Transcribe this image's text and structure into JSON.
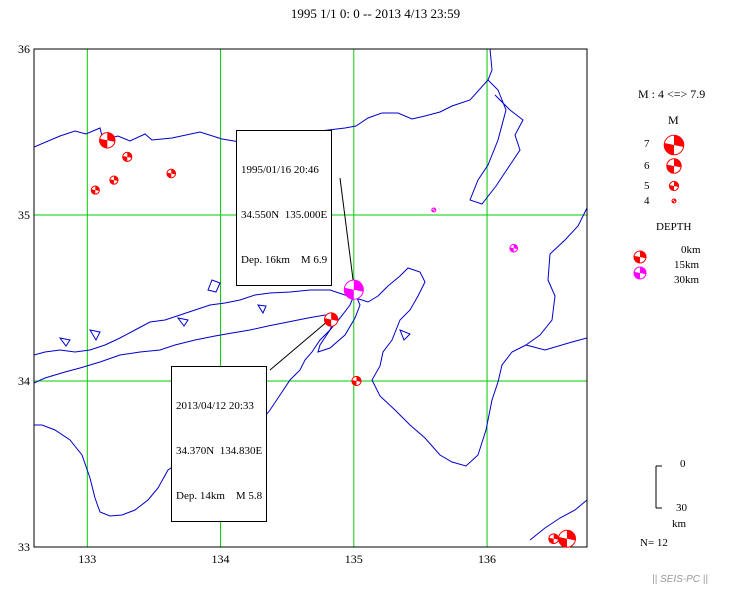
{
  "title": "1995 1/1 0: 0 -- 2013 4/13 23:59",
  "map": {
    "lon_range": [
      132.6,
      136.75
    ],
    "lat_range": [
      33.0,
      36.0
    ],
    "lon_ticks": [
      "133",
      "134",
      "135",
      "136"
    ],
    "lat_ticks": [
      "36",
      "35",
      "34",
      "33"
    ],
    "grid_color": "#00cc00",
    "coast_color": "#0000cc"
  },
  "events": [
    {
      "lon": 133.15,
      "lat": 35.45,
      "mag": 6.2,
      "depth": 12,
      "color": "#ff0000"
    },
    {
      "lon": 133.3,
      "lat": 35.35,
      "mag": 5.0,
      "depth": 10,
      "color": "#ff0000"
    },
    {
      "lon": 133.2,
      "lat": 35.21,
      "mag": 4.8,
      "depth": 10,
      "color": "#ff0000"
    },
    {
      "lon": 133.06,
      "lat": 35.15,
      "mag": 4.8,
      "depth": 10,
      "color": "#ff0000"
    },
    {
      "lon": 133.63,
      "lat": 35.25,
      "mag": 4.9,
      "depth": 10,
      "color": "#ff0000"
    },
    {
      "lon": 135.6,
      "lat": 35.03,
      "mag": 4.0,
      "depth": 30,
      "color": "#ff00ff"
    },
    {
      "lon": 136.2,
      "lat": 34.8,
      "mag": 4.7,
      "depth": 30,
      "color": "#ff00ff"
    },
    {
      "lon": 135.0,
      "lat": 34.55,
      "mag": 6.9,
      "depth": 16,
      "color": "#ff00ff"
    },
    {
      "lon": 134.83,
      "lat": 34.37,
      "mag": 5.8,
      "depth": 14,
      "color": "#ff0000"
    },
    {
      "lon": 135.02,
      "lat": 34.0,
      "mag": 5.0,
      "depth": 10,
      "color": "#ff0000"
    },
    {
      "lon": 136.5,
      "lat": 33.05,
      "mag": 5.1,
      "depth": 10,
      "color": "#ff0000"
    },
    {
      "lon": 136.6,
      "lat": 33.05,
      "mag": 6.5,
      "depth": 10,
      "color": "#ff0000"
    }
  ],
  "callouts": [
    {
      "date": "1995/01/16 20:46",
      "coords": "34.550N  135.000E",
      "info": "Dep. 16km    M 6.9"
    },
    {
      "date": "2013/04/12 20:33",
      "coords": "34.370N  134.830E",
      "info": "Dep. 14km    M 5.8"
    }
  ],
  "legend": {
    "range": "M : 4 <=> 7.9",
    "mag_header": "M",
    "mags": [
      "7",
      "6",
      "5",
      "4"
    ],
    "depth_header": "DEPTH",
    "depths": [
      "0km",
      "15km",
      "30km"
    ],
    "depth_colors": [
      "#ff0000",
      "#ff0000",
      "#ff00ff"
    ],
    "scale_top": "0",
    "scale_bottom": "30",
    "scale_unit": "km",
    "count": "N= 12"
  },
  "footer": "|| SEIS-PC ||"
}
